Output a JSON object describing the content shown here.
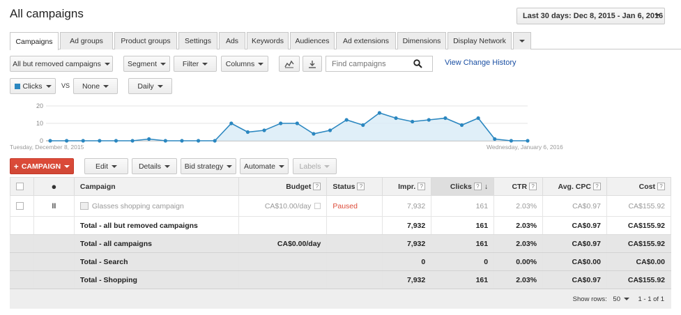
{
  "page": {
    "title": "All campaigns"
  },
  "date_range": {
    "label": "Last 30 days: Dec 8, 2015 - Jan 6, 2016"
  },
  "tabs": [
    {
      "label": "Campaigns",
      "active": true
    },
    {
      "label": "Ad groups"
    },
    {
      "label": "Product groups"
    },
    {
      "label": "Settings"
    },
    {
      "label": "Ads"
    },
    {
      "label": "Keywords"
    },
    {
      "label": "Audiences"
    },
    {
      "label": "Ad extensions"
    },
    {
      "label": "Dimensions"
    },
    {
      "label": "Display Network"
    }
  ],
  "toolbar": {
    "filter_view": "All but removed campaigns",
    "segment": "Segment",
    "filter": "Filter",
    "columns": "Columns",
    "search_placeholder": "Find campaigns",
    "view_change_history": "View Change History"
  },
  "chart_controls": {
    "metric1": "Clicks",
    "vs": "VS",
    "metric2": "None",
    "granularity": "Daily"
  },
  "chart_data": {
    "type": "area",
    "series": [
      {
        "name": "Clicks",
        "color": "#2b87c0",
        "values": [
          0,
          0,
          0,
          0,
          0,
          0,
          1,
          0,
          0,
          0,
          0,
          10,
          5,
          6,
          10,
          10,
          4,
          6,
          12,
          9,
          16,
          13,
          11,
          12,
          13,
          9,
          13,
          1,
          0,
          0
        ]
      }
    ],
    "yticks": [
      0,
      10,
      20
    ],
    "ylim": [
      0,
      20
    ],
    "start_label": "Tuesday, December 8, 2015",
    "end_label": "Wednesday, January 6, 2016"
  },
  "actions": {
    "campaign": "CAMPAIGN",
    "edit": "Edit",
    "details": "Details",
    "bid_strategy": "Bid strategy",
    "automate": "Automate",
    "labels": "Labels"
  },
  "table": {
    "headers": {
      "campaign": "Campaign",
      "budget": "Budget",
      "status": "Status",
      "impr": "Impr.",
      "clicks": "Clicks",
      "ctr": "CTR",
      "avg_cpc": "Avg. CPC",
      "cost": "Cost"
    },
    "help_glyph": "?",
    "rows": [
      {
        "campaign": "Glasses shopping campaign",
        "budget": "CA$10.00/day",
        "status": "Paused",
        "impr": "7,932",
        "clicks": "161",
        "ctr": "2.03%",
        "avg_cpc": "CA$0.97",
        "cost": "CA$155.92"
      }
    ],
    "totals": [
      {
        "label": "Total - all but removed campaigns",
        "budget": "",
        "impr": "7,932",
        "clicks": "161",
        "ctr": "2.03%",
        "avg_cpc": "CA$0.97",
        "cost": "CA$155.92"
      },
      {
        "label": "Total - all campaigns",
        "budget": "CA$0.00/day",
        "impr": "7,932",
        "clicks": "161",
        "ctr": "2.03%",
        "avg_cpc": "CA$0.97",
        "cost": "CA$155.92"
      },
      {
        "label": "Total - Search",
        "budget": "",
        "impr": "0",
        "clicks": "0",
        "ctr": "0.00%",
        "avg_cpc": "CA$0.00",
        "cost": "CA$0.00"
      },
      {
        "label": "Total - Shopping",
        "budget": "",
        "impr": "7,932",
        "clicks": "161",
        "ctr": "2.03%",
        "avg_cpc": "CA$0.97",
        "cost": "CA$155.92"
      }
    ]
  },
  "pagination": {
    "show_rows_label": "Show rows:",
    "rows_value": "50",
    "range": "1 - 1 of 1"
  }
}
